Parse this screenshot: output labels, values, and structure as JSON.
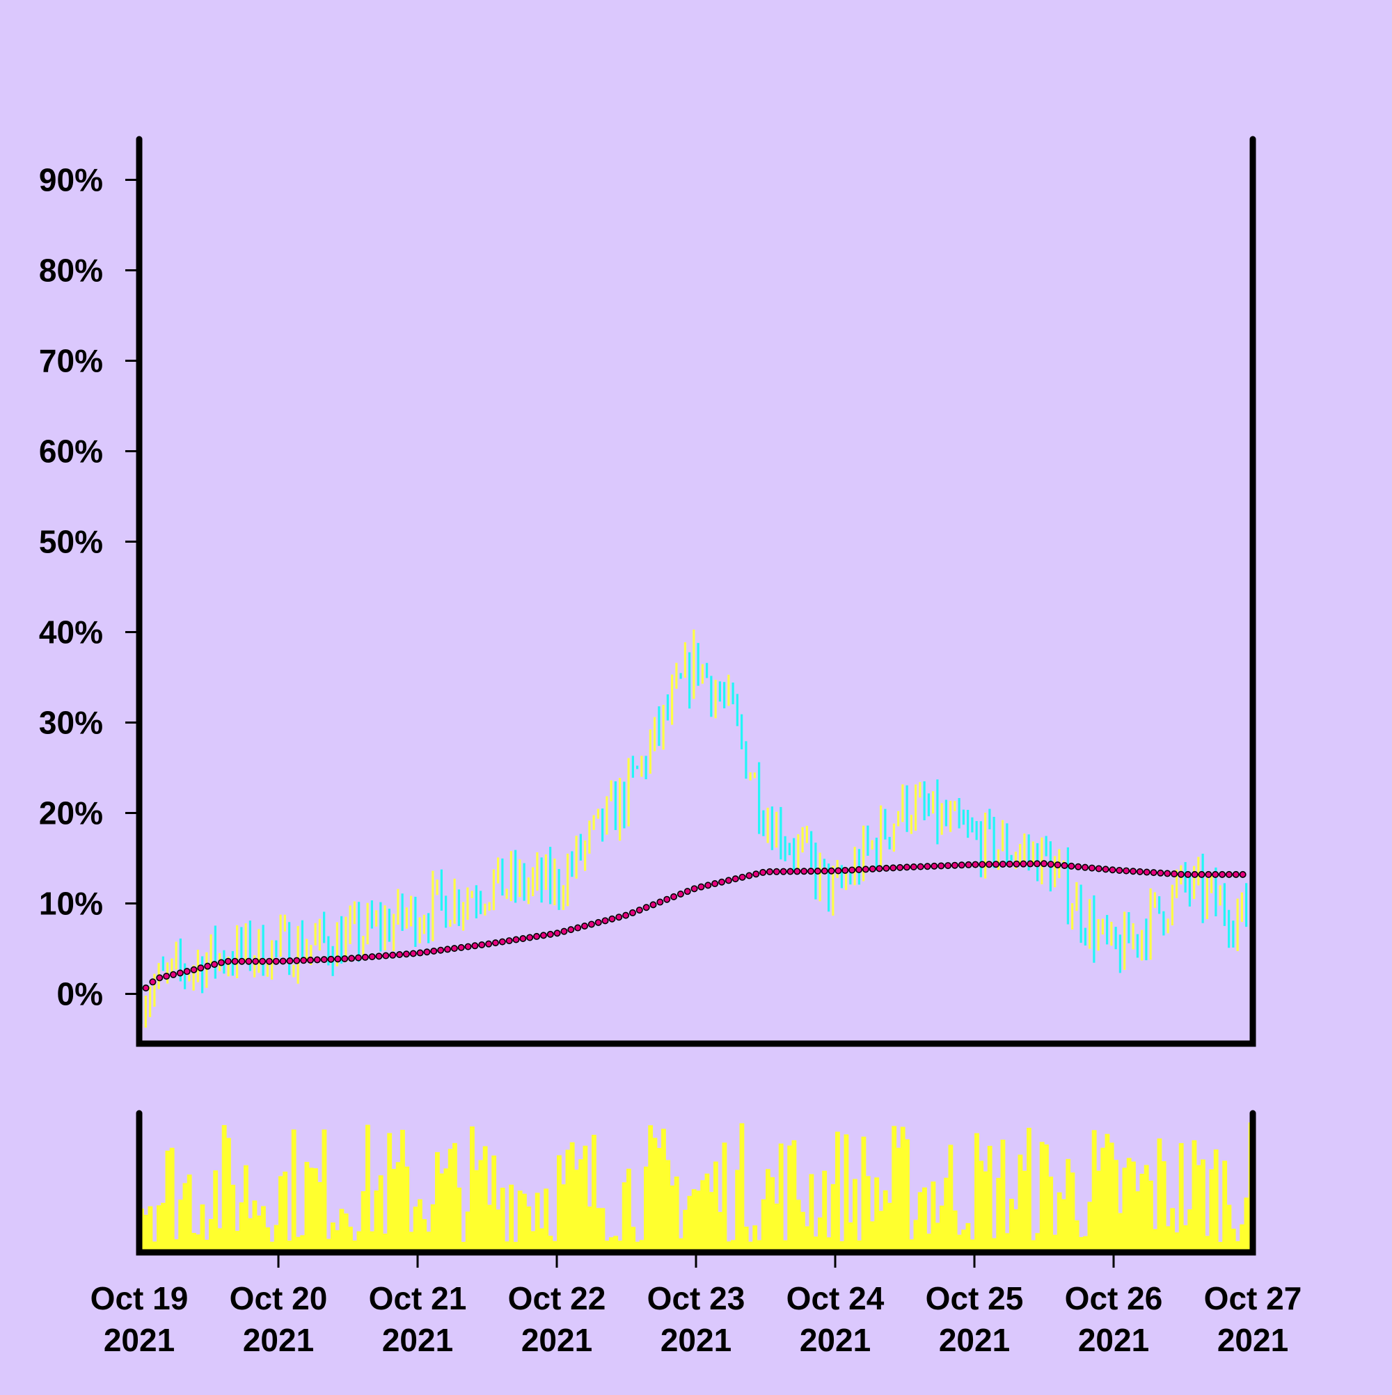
{
  "chart_data": {
    "type": "ohlc",
    "colors": {
      "background": "#dbc8fd",
      "up": "#ffff44",
      "down": "#22f6f6",
      "moving_average": "#e6007e",
      "volume": "#ffff2e",
      "axis": "#000000"
    },
    "y_axis": {
      "format": "percent",
      "ticks": [
        0,
        10,
        20,
        30,
        40,
        50,
        60,
        70,
        80,
        90
      ],
      "tick_labels": [
        "0%",
        "10%",
        "20%",
        "30%",
        "40%",
        "50%",
        "60%",
        "70%",
        "80%",
        "90%"
      ],
      "range": [
        -5.5,
        94.5
      ]
    },
    "x_axis": {
      "start": "2021-10-19 00:00",
      "end": "2021-10-27 00:00",
      "tick_labels": [
        [
          "Oct 19",
          "2021"
        ],
        [
          "Oct 20",
          "2021"
        ],
        [
          "Oct 21",
          "2021"
        ],
        [
          "Oct 22",
          "2021"
        ],
        [
          "Oct 23",
          "2021"
        ],
        [
          "Oct 24",
          "2021"
        ],
        [
          "Oct 25",
          "2021"
        ],
        [
          "Oct 26",
          "2021"
        ],
        [
          "Oct 27",
          "2021"
        ]
      ]
    },
    "series_trend": {
      "description_points": [
        [
          "2021-10-19 00:00",
          0
        ],
        [
          "2021-10-19 12:00",
          4
        ],
        [
          "2021-10-20 00:00",
          5
        ],
        [
          "2021-10-20 12:00",
          6
        ],
        [
          "2021-10-21 00:00",
          9
        ],
        [
          "2021-10-21 12:00",
          12
        ],
        [
          "2021-10-22 00:00",
          12
        ],
        [
          "2021-10-22 12:00",
          22
        ],
        [
          "2021-10-23 00:00",
          37
        ],
        [
          "2021-10-23 06:00",
          31
        ],
        [
          "2021-10-23 12:00",
          20
        ],
        [
          "2021-10-24 00:00",
          11
        ],
        [
          "2021-10-24 12:00",
          21
        ],
        [
          "2021-10-25 00:00",
          17
        ],
        [
          "2021-10-25 12:00",
          15
        ],
        [
          "2021-10-26 00:00",
          4
        ],
        [
          "2021-10-26 12:00",
          12
        ],
        [
          "2021-10-27 00:00",
          8
        ]
      ]
    },
    "moving_average_points": [
      [
        "2021-10-19 00:00",
        0
      ],
      [
        "2021-10-19 03:00",
        1.7
      ],
      [
        "2021-10-19 09:00",
        2.6
      ],
      [
        "2021-10-19 15:00",
        3.6
      ],
      [
        "2021-10-20 00:00",
        3.6
      ],
      [
        "2021-10-20 12:00",
        3.9
      ],
      [
        "2021-10-21 00:00",
        4.5
      ],
      [
        "2021-10-21 12:00",
        5.5
      ],
      [
        "2021-10-22 00:00",
        6.7
      ],
      [
        "2021-10-22 12:00",
        8.7
      ],
      [
        "2021-10-23 00:00",
        11.7
      ],
      [
        "2021-10-23 12:00",
        13.5
      ],
      [
        "2021-10-24 00:00",
        13.6
      ],
      [
        "2021-10-24 12:00",
        14.0
      ],
      [
        "2021-10-25 00:00",
        14.3
      ],
      [
        "2021-10-25 12:00",
        14.4
      ],
      [
        "2021-10-26 00:00",
        13.7
      ],
      [
        "2021-10-26 12:00",
        13.2
      ],
      [
        "2021-10-27 00:00",
        13.2
      ]
    ]
  }
}
